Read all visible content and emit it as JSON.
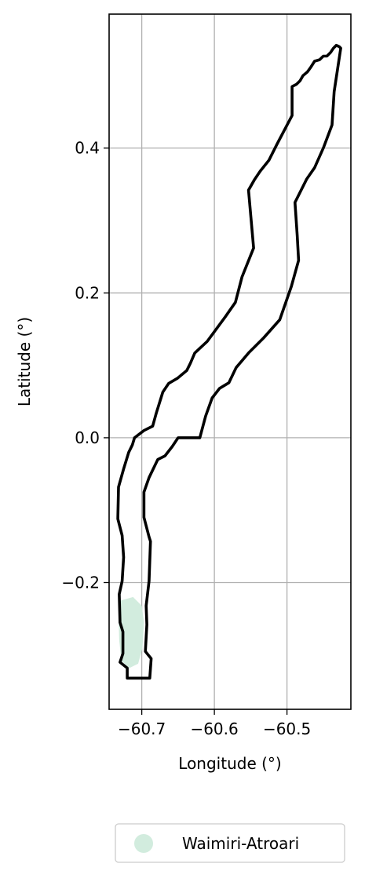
{
  "chart_data": {
    "type": "map",
    "xlabel": "Longitude (°)",
    "ylabel": "Latitude (°)",
    "xlim": [
      -60.745,
      -60.412
    ],
    "ylim": [
      -0.375,
      0.585
    ],
    "xticks": [
      -60.7,
      -60.6,
      -60.5
    ],
    "xtick_labels": [
      "−60.7",
      "−60.6",
      "−60.5"
    ],
    "yticks": [
      -0.2,
      0.0,
      0.2,
      0.4
    ],
    "ytick_labels": [
      "−0.2",
      "0.0",
      "0.2",
      "0.4"
    ],
    "grid": true,
    "legend": {
      "placement": "bottom-center",
      "entries": [
        {
          "label": "Waimiri-Atroari",
          "color": "#d2ecde"
        }
      ]
    },
    "boundary_color": "#000000",
    "boundary": [
      [
        -60.72,
        -0.332
      ],
      [
        -60.689,
        -0.332
      ],
      [
        -60.687,
        -0.305
      ],
      [
        -60.695,
        -0.295
      ],
      [
        -60.693,
        -0.258
      ],
      [
        -60.694,
        -0.232
      ],
      [
        -60.69,
        -0.198
      ],
      [
        -60.688,
        -0.143
      ],
      [
        -60.69,
        -0.137
      ],
      [
        -60.697,
        -0.11
      ],
      [
        -60.697,
        -0.075
      ],
      [
        -60.69,
        -0.055
      ],
      [
        -60.678,
        -0.03
      ],
      [
        -60.668,
        -0.025
      ],
      [
        -60.658,
        -0.012
      ],
      [
        -60.65,
        0.0
      ],
      [
        -60.62,
        0.0
      ],
      [
        -60.612,
        0.03
      ],
      [
        -60.603,
        0.055
      ],
      [
        -60.593,
        0.068
      ],
      [
        -60.58,
        0.076
      ],
      [
        -60.57,
        0.097
      ],
      [
        -60.553,
        0.117
      ],
      [
        -60.532,
        0.138
      ],
      [
        -60.51,
        0.163
      ],
      [
        -60.494,
        0.209
      ],
      [
        -60.484,
        0.245
      ],
      [
        -60.486,
        0.28
      ],
      [
        -60.489,
        0.325
      ],
      [
        -60.473,
        0.357
      ],
      [
        -60.462,
        0.373
      ],
      [
        -60.45,
        0.4
      ],
      [
        -60.438,
        0.432
      ],
      [
        -60.435,
        0.478
      ],
      [
        -60.426,
        0.538
      ],
      [
        -60.428,
        0.54
      ],
      [
        -60.432,
        0.542
      ],
      [
        -60.436,
        0.538
      ],
      [
        -60.44,
        0.532
      ],
      [
        -60.445,
        0.527
      ],
      [
        -60.45,
        0.527
      ],
      [
        -60.455,
        0.522
      ],
      [
        -60.462,
        0.52
      ],
      [
        -60.467,
        0.512
      ],
      [
        -60.472,
        0.505
      ],
      [
        -60.478,
        0.5
      ],
      [
        -60.482,
        0.493
      ],
      [
        -60.487,
        0.488
      ],
      [
        -60.493,
        0.485
      ],
      [
        -60.493,
        0.445
      ],
      [
        -60.514,
        0.405
      ],
      [
        -60.525,
        0.383
      ],
      [
        -60.537,
        0.368
      ],
      [
        -60.545,
        0.356
      ],
      [
        -60.553,
        0.342
      ],
      [
        -60.546,
        0.262
      ],
      [
        -60.562,
        0.222
      ],
      [
        -60.571,
        0.187
      ],
      [
        -60.585,
        0.167
      ],
      [
        -60.61,
        0.133
      ],
      [
        -60.627,
        0.117
      ],
      [
        -60.633,
        0.103
      ],
      [
        -60.638,
        0.093
      ],
      [
        -60.651,
        0.082
      ],
      [
        -60.663,
        0.075
      ],
      [
        -60.671,
        0.063
      ],
      [
        -60.68,
        0.034
      ],
      [
        -60.685,
        0.016
      ],
      [
        -60.697,
        0.01
      ],
      [
        -60.71,
        0.0
      ],
      [
        -60.713,
        -0.01
      ],
      [
        -60.718,
        -0.02
      ],
      [
        -60.725,
        -0.043
      ],
      [
        -60.732,
        -0.068
      ],
      [
        -60.733,
        -0.112
      ],
      [
        -60.727,
        -0.135
      ],
      [
        -60.725,
        -0.165
      ],
      [
        -60.727,
        -0.198
      ],
      [
        -60.731,
        -0.216
      ],
      [
        -60.73,
        -0.255
      ],
      [
        -60.726,
        -0.268
      ],
      [
        -60.726,
        -0.298
      ],
      [
        -60.73,
        -0.31
      ],
      [
        -60.72,
        -0.318
      ],
      [
        -60.72,
        -0.332
      ]
    ],
    "marker": [
      [
        -60.73,
        -0.225
      ],
      [
        -60.712,
        -0.22
      ],
      [
        -60.7,
        -0.232
      ],
      [
        -60.697,
        -0.255
      ],
      [
        -60.699,
        -0.29
      ],
      [
        -60.705,
        -0.312
      ],
      [
        -60.717,
        -0.318
      ],
      [
        -60.728,
        -0.308
      ],
      [
        -60.731,
        -0.28
      ],
      [
        -60.732,
        -0.25
      ]
    ]
  }
}
